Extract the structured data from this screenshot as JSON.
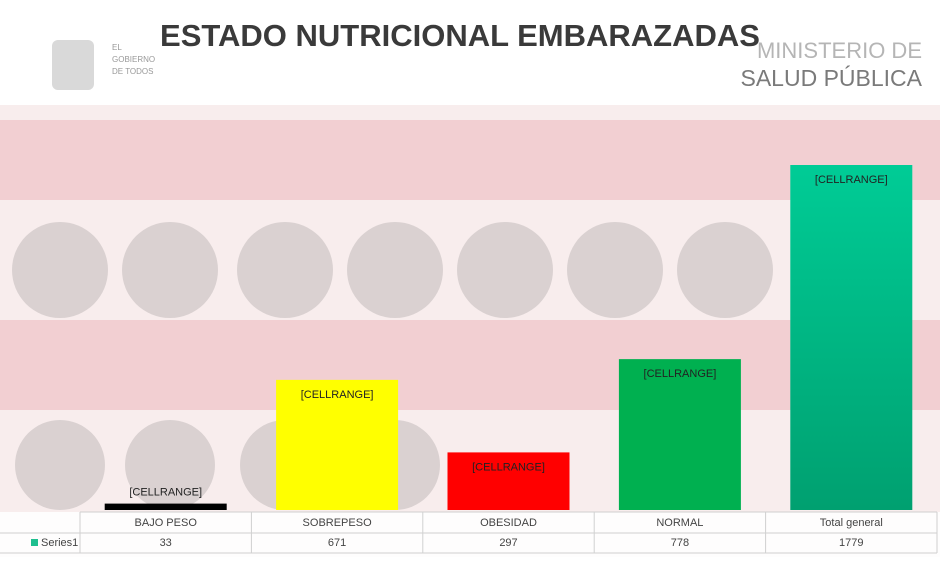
{
  "header": {
    "brand_line1": "EL",
    "brand_line2": "GOBIERNO",
    "brand_line3": "DE TODOS",
    "ministry_line1": "MINISTERIO DE",
    "ministry_line2": "SALUD PÚBLICA"
  },
  "chart_data": {
    "type": "bar",
    "title": "ESTADO NUTRICIONAL EMBARAZADAS",
    "categories": [
      "BAJO PESO",
      "SOBREPESO",
      "OBESIDAD",
      "NORMAL",
      "Total general"
    ],
    "series": [
      {
        "name": "Series1",
        "color": "#1fbf8f",
        "values": [
          33,
          671,
          297,
          778,
          1779
        ]
      }
    ],
    "colors": [
      "#000000",
      "#ffff00",
      "#ff0000",
      "#00b050",
      "#00c48f"
    ],
    "data_labels": [
      "[CELLRANGE]",
      "[CELLRANGE]",
      "[CELLRANGE]",
      "[CELLRANGE]",
      "[CELLRANGE]"
    ]
  }
}
